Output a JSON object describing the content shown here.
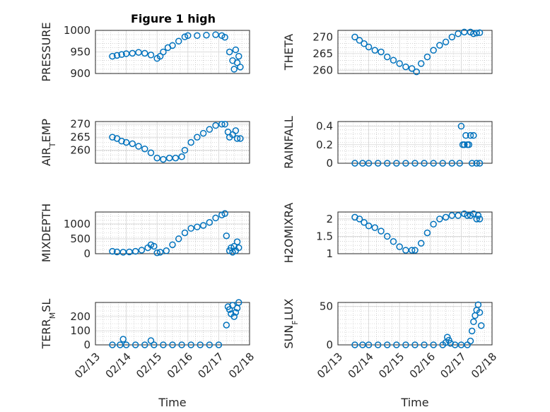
{
  "figure": {
    "title": "Figure 1 high"
  },
  "chart_data": [
    {
      "type": "scatter",
      "ylabel": "PRESSURE",
      "ylim": [
        900,
        1000
      ],
      "yticks": [
        900,
        950,
        1000
      ],
      "xlabel": "",
      "xticks": [
        "02/13",
        "02/14",
        "02/15",
        "02/16",
        "02/17",
        "02/18"
      ],
      "xlim": [
        0,
        5
      ],
      "grid": true,
      "x": [
        0.55,
        0.7,
        0.85,
        1.0,
        1.2,
        1.4,
        1.6,
        1.8,
        2.0,
        2.1,
        2.2,
        2.35,
        2.5,
        2.7,
        2.9,
        3.0,
        3.3,
        3.6,
        3.9,
        4.1,
        4.2,
        4.35,
        4.45,
        4.5,
        4.55,
        4.6,
        4.65,
        4.7
      ],
      "y": [
        940,
        942,
        944,
        946,
        947,
        949,
        947,
        943,
        935,
        940,
        950,
        960,
        965,
        975,
        985,
        988,
        988,
        989,
        990,
        988,
        984,
        950,
        930,
        910,
        955,
        925,
        940,
        915
      ]
    },
    {
      "type": "scatter",
      "ylabel": "THETA",
      "ylim": [
        259,
        272
      ],
      "yticks": [
        260,
        265,
        270
      ],
      "xlabel": "",
      "xticks": [
        "02/13",
        "02/14",
        "02/15",
        "02/16",
        "02/17",
        "02/18"
      ],
      "xlim": [
        0,
        5
      ],
      "grid": true,
      "x": [
        0.55,
        0.7,
        0.85,
        1.0,
        1.2,
        1.4,
        1.6,
        1.8,
        2.0,
        2.2,
        2.4,
        2.55,
        2.7,
        2.9,
        3.1,
        3.3,
        3.5,
        3.7,
        3.9,
        4.1,
        4.3,
        4.4,
        4.5,
        4.6
      ],
      "y": [
        270,
        269,
        268,
        267,
        266,
        265.5,
        264,
        263,
        262,
        261,
        260.5,
        259.5,
        262,
        264,
        266,
        267.5,
        268.5,
        270,
        271,
        271.5,
        271.5,
        271,
        271.2,
        271.3
      ]
    },
    {
      "type": "scatter",
      "ylabel": "AIR",
      "ylabel_sub": "T",
      "ylabel_tail": "EMP",
      "ylim": [
        255,
        271
      ],
      "yticks": [
        260,
        265,
        270
      ],
      "xlabel": "",
      "xticks": [
        "02/13",
        "02/14",
        "02/15",
        "02/16",
        "02/17",
        "02/18"
      ],
      "xlim": [
        0,
        5
      ],
      "grid": true,
      "x": [
        0.55,
        0.7,
        0.85,
        1.0,
        1.2,
        1.4,
        1.6,
        1.8,
        2.0,
        2.2,
        2.4,
        2.6,
        2.8,
        2.9,
        3.1,
        3.3,
        3.5,
        3.7,
        3.9,
        4.1,
        4.2,
        4.3,
        4.35,
        4.45,
        4.55,
        4.6,
        4.7
      ],
      "y": [
        265,
        264.5,
        263.5,
        263,
        262.5,
        261.5,
        260.5,
        259,
        257,
        256.5,
        257,
        257,
        257.5,
        260,
        263,
        265,
        266.5,
        268,
        269.5,
        270,
        270,
        267,
        265,
        266,
        267.5,
        264.5,
        264.5
      ]
    },
    {
      "type": "scatter",
      "ylabel": "RAINFALL",
      "ylim": [
        0,
        0.45
      ],
      "yticks": [
        0,
        0.2,
        0.4
      ],
      "xlabel": "",
      "xticks": [
        "02/13",
        "02/14",
        "02/15",
        "02/16",
        "02/17",
        "02/18"
      ],
      "xlim": [
        0,
        5
      ],
      "grid": true,
      "x": [
        0.55,
        0.8,
        1.0,
        1.3,
        1.6,
        1.9,
        2.2,
        2.5,
        2.8,
        3.1,
        3.4,
        3.7,
        3.95,
        4.0,
        4.05,
        4.1,
        4.15,
        4.2,
        4.25,
        4.3,
        4.35,
        4.4,
        4.5,
        4.6
      ],
      "y": [
        0,
        0,
        0,
        0,
        0,
        0,
        0,
        0,
        0,
        0,
        0,
        0,
        0,
        0.4,
        0.2,
        0.2,
        0.3,
        0.2,
        0.2,
        0.3,
        0,
        0.3,
        0,
        0
      ]
    },
    {
      "type": "scatter",
      "ylabel": "MIXDEPTH",
      "ylim": [
        0,
        1400
      ],
      "yticks": [
        0,
        500,
        1000
      ],
      "xlabel": "",
      "xticks": [
        "02/13",
        "02/14",
        "02/15",
        "02/16",
        "02/17",
        "02/18"
      ],
      "xlim": [
        0,
        5
      ],
      "grid": true,
      "x": [
        0.55,
        0.7,
        0.9,
        1.1,
        1.3,
        1.5,
        1.7,
        1.8,
        1.9,
        2.0,
        2.1,
        2.3,
        2.5,
        2.7,
        2.9,
        3.1,
        3.3,
        3.5,
        3.7,
        3.9,
        4.1,
        4.2,
        4.25,
        4.35,
        4.4,
        4.45,
        4.5,
        4.55,
        4.6,
        4.65
      ],
      "y": [
        80,
        60,
        50,
        60,
        80,
        120,
        200,
        300,
        250,
        30,
        50,
        100,
        300,
        500,
        700,
        850,
        900,
        950,
        1050,
        1200,
        1300,
        1350,
        600,
        100,
        200,
        50,
        250,
        100,
        400,
        200
      ]
    },
    {
      "type": "scatter",
      "ylabel": "H2OMIXRA",
      "ylim": [
        1,
        2.2
      ],
      "yticks": [
        1,
        1.5,
        2
      ],
      "xlabel": "",
      "xticks": [
        "02/13",
        "02/14",
        "02/15",
        "02/16",
        "02/17",
        "02/18"
      ],
      "xlim": [
        0,
        5
      ],
      "grid": true,
      "x": [
        0.55,
        0.7,
        0.85,
        1.0,
        1.2,
        1.4,
        1.6,
        1.8,
        2.0,
        2.2,
        2.4,
        2.5,
        2.7,
        2.9,
        3.1,
        3.3,
        3.5,
        3.7,
        3.9,
        4.1,
        4.2,
        4.3,
        4.4,
        4.5,
        4.55,
        4.6
      ],
      "y": [
        2.05,
        2.0,
        1.9,
        1.8,
        1.75,
        1.65,
        1.5,
        1.35,
        1.2,
        1.1,
        1.1,
        1.1,
        1.3,
        1.6,
        1.85,
        2.0,
        2.05,
        2.1,
        2.1,
        2.15,
        2.1,
        2.1,
        2.15,
        2.0,
        2.1,
        2.0
      ]
    },
    {
      "type": "scatter",
      "ylabel": "TERR",
      "ylabel_sub": "M",
      "ylabel_tail": "SL",
      "ylim": [
        0,
        300
      ],
      "yticks": [
        0,
        100,
        200
      ],
      "xlabel": "Time",
      "xticks": [
        "02/13",
        "02/14",
        "02/15",
        "02/16",
        "02/17",
        "02/18"
      ],
      "xlim": [
        0,
        5
      ],
      "grid": true,
      "x": [
        0.55,
        0.8,
        1.0,
        1.3,
        1.6,
        1.9,
        2.2,
        2.5,
        2.8,
        3.1,
        3.4,
        3.7,
        4.0,
        0.9,
        1.8,
        4.25,
        4.3,
        4.35,
        4.4,
        4.45,
        4.5,
        4.55,
        4.6,
        4.65
      ],
      "y": [
        0,
        0,
        0,
        0,
        0,
        0,
        0,
        0,
        0,
        0,
        0,
        0,
        0,
        40,
        30,
        140,
        270,
        250,
        220,
        280,
        200,
        230,
        260,
        300
      ]
    },
    {
      "type": "scatter",
      "ylabel": "SUN",
      "ylabel_sub": "F",
      "ylabel_tail": "LUX",
      "ylim": [
        0,
        55
      ],
      "yticks": [
        0,
        50
      ],
      "xlabel": "Time",
      "xticks": [
        "02/13",
        "02/14",
        "02/15",
        "02/16",
        "02/17",
        "02/18"
      ],
      "xlim": [
        0,
        5
      ],
      "grid": true,
      "x": [
        0.55,
        0.8,
        1.0,
        1.3,
        1.6,
        1.9,
        2.2,
        2.5,
        2.8,
        3.1,
        3.4,
        3.5,
        3.55,
        3.6,
        3.65,
        3.8,
        4.0,
        4.2,
        4.3,
        4.35,
        4.4,
        4.45,
        4.5,
        4.55,
        4.6,
        4.65
      ],
      "y": [
        0,
        0,
        0,
        0,
        0,
        0,
        0,
        0,
        0,
        0,
        0,
        3,
        10,
        6,
        2,
        0,
        0,
        0,
        5,
        18,
        30,
        38,
        45,
        52,
        42,
        25
      ]
    }
  ]
}
